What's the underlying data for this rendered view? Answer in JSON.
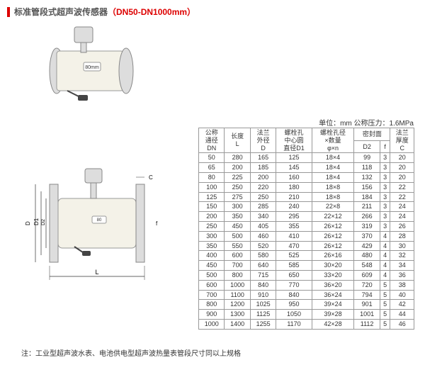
{
  "title": {
    "prefix_marker": "|",
    "text": "标准管段式超声波传感器",
    "range": "（DN50-DN1000mm）"
  },
  "units_line": "单位：mm  公称压力：1.6MPa",
  "note": "注：工业型超声波水表、电池供电型超声波热量表管段尺寸同以上规格",
  "product_label": "80mm",
  "table": {
    "header_row1": [
      "公称通径",
      "长度",
      "法兰外径",
      "螺栓孔中心圆直径D1",
      "螺栓孔径×数量",
      "密封面",
      "密封面",
      "法兰厚度"
    ],
    "header_row2": [
      "DN",
      "L",
      "D",
      "",
      "φ×n",
      "D2",
      "f",
      "C"
    ],
    "columns": [
      "DN",
      "L",
      "D",
      "D1",
      "phi_n",
      "D2",
      "f",
      "C"
    ],
    "col_widths": [
      "10%",
      "11%",
      "11%",
      "18%",
      "18%",
      "12%",
      "8%",
      "12%"
    ],
    "rows": [
      [
        "50",
        "280",
        "165",
        "125",
        "18×4",
        "99",
        "3",
        "20"
      ],
      [
        "65",
        "200",
        "185",
        "145",
        "18×4",
        "118",
        "3",
        "20"
      ],
      [
        "80",
        "225",
        "200",
        "160",
        "18×4",
        "132",
        "3",
        "20"
      ],
      [
        "100",
        "250",
        "220",
        "180",
        "18×8",
        "156",
        "3",
        "22"
      ],
      [
        "125",
        "275",
        "250",
        "210",
        "18×8",
        "184",
        "3",
        "22"
      ],
      [
        "150",
        "300",
        "285",
        "240",
        "22×8",
        "211",
        "3",
        "24"
      ],
      [
        "200",
        "350",
        "340",
        "295",
        "22×12",
        "266",
        "3",
        "24"
      ],
      [
        "250",
        "450",
        "405",
        "355",
        "26×12",
        "319",
        "3",
        "26"
      ],
      [
        "300",
        "500",
        "460",
        "410",
        "26×12",
        "370",
        "4",
        "28"
      ],
      [
        "350",
        "550",
        "520",
        "470",
        "26×12",
        "429",
        "4",
        "30"
      ],
      [
        "400",
        "600",
        "580",
        "525",
        "26×16",
        "480",
        "4",
        "32"
      ],
      [
        "450",
        "700",
        "640",
        "585",
        "30×20",
        "548",
        "4",
        "34"
      ],
      [
        "500",
        "800",
        "715",
        "650",
        "33×20",
        "609",
        "4",
        "36"
      ],
      [
        "600",
        "1000",
        "840",
        "770",
        "36×20",
        "720",
        "5",
        "38"
      ],
      [
        "700",
        "1100",
        "910",
        "840",
        "36×24",
        "794",
        "5",
        "40"
      ],
      [
        "800",
        "1200",
        "1025",
        "950",
        "39×24",
        "901",
        "5",
        "42"
      ],
      [
        "900",
        "1300",
        "1125",
        "1050",
        "39×28",
        "1001",
        "5",
        "44"
      ],
      [
        "1000",
        "1400",
        "1255",
        "1170",
        "42×28",
        "1112",
        "5",
        "46"
      ]
    ]
  },
  "colors": {
    "accent": "#d00",
    "border": "#999",
    "text": "#333"
  }
}
